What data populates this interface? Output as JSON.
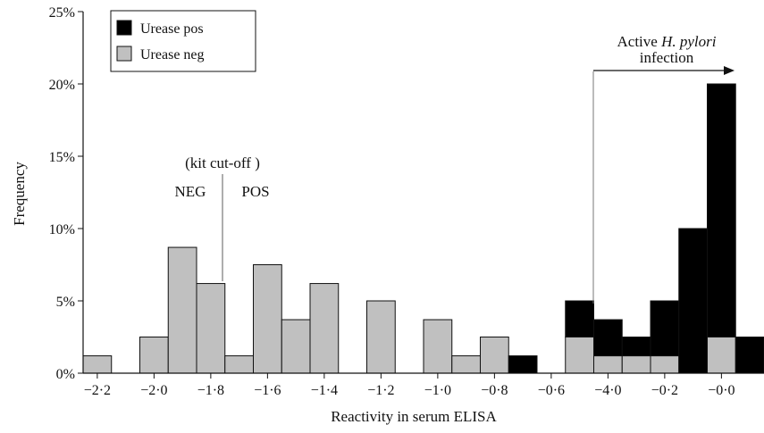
{
  "chart_data": {
    "type": "bar",
    "stacked": true,
    "title": "",
    "xlabel": "Reactivity in serum ELISA",
    "ylabel": "Frequency",
    "ylim": [
      0,
      25
    ],
    "yticks": [
      "0%",
      "5%",
      "10%",
      "15%",
      "20%",
      "25%"
    ],
    "xticks": [
      "−2·2",
      "−2·0",
      "−1·8",
      "−1·6",
      "−1·4",
      "−1·2",
      "−1·0",
      "−0·8",
      "−0·6",
      "−4·0",
      "−0·2",
      "−0·0"
    ],
    "grid": false,
    "legend_position": "top-left",
    "categories": [
      "b1",
      "b2",
      "b3",
      "b4",
      "b5",
      "b6",
      "b7",
      "b8",
      "b9",
      "b10",
      "b11",
      "b12",
      "b13",
      "b14",
      "b15",
      "b16",
      "b17",
      "b18",
      "b19",
      "b20",
      "b21",
      "b22",
      "b23",
      "b24"
    ],
    "series": [
      {
        "name": "Urease neg",
        "color": "#c0c0c0",
        "values": [
          1.2,
          0,
          2.5,
          8.7,
          6.2,
          1.2,
          7.5,
          3.7,
          6.2,
          0,
          5.0,
          0,
          3.7,
          1.2,
          2.5,
          0,
          0,
          2.5,
          1.2,
          1.2,
          1.2,
          0,
          2.5,
          0
        ]
      },
      {
        "name": "Urease pos",
        "color": "#000000",
        "values": [
          0,
          0,
          0,
          0,
          0,
          0,
          0,
          0,
          0,
          0,
          0,
          0,
          0,
          0,
          0,
          1.2,
          0,
          2.5,
          2.5,
          1.3,
          3.8,
          10.0,
          17.5,
          2.5
        ]
      }
    ],
    "annotations": {
      "cutoff_label": "(kit cut-off )",
      "neg_label": "NEG",
      "pos_label": "POS",
      "active_label_prefix": "Active ",
      "active_label_italic": "H. pylori",
      "active_label_line2": "infection"
    }
  }
}
